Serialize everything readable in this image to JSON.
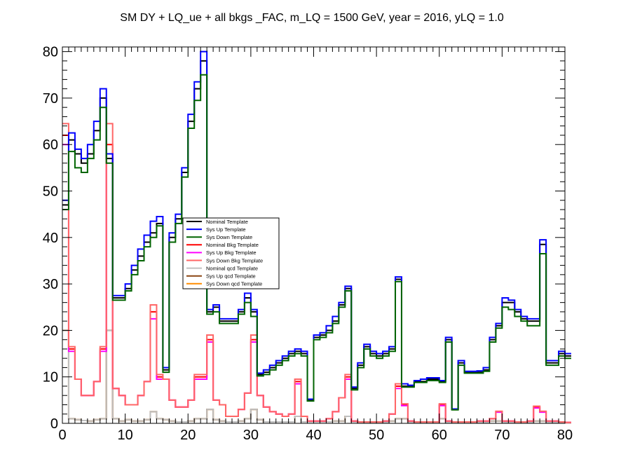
{
  "chart_data": {
    "type": "line",
    "title": "SM DY + LQ_ue + all bkgs _FAC, m_LQ = 1500 GeV, year = 2016, yLQ = 1.0",
    "xlabel": "",
    "ylabel": "",
    "xlim": [
      0,
      80
    ],
    "ylim": [
      0,
      81
    ],
    "x_ticks": [
      0,
      10,
      20,
      30,
      40,
      50,
      60,
      70,
      80
    ],
    "y_ticks": [
      0,
      10,
      20,
      30,
      40,
      50,
      60,
      70,
      80
    ],
    "bin_width": 1,
    "grid": false,
    "legend_placement": "center-left",
    "series": [
      {
        "name": "Nominal Template",
        "color": "#000000",
        "values": [
          47,
          61,
          58,
          56,
          58,
          63,
          70,
          57,
          27,
          27,
          29,
          33,
          36,
          39,
          41,
          43,
          11.5,
          40,
          44,
          54,
          65,
          72,
          78,
          24,
          25,
          22,
          22,
          22,
          24,
          27,
          24,
          10.5,
          11,
          12,
          13,
          14,
          15,
          15.5,
          15,
          5,
          18.5,
          19,
          20,
          22,
          25.5,
          29,
          7.5,
          12.5,
          16.5,
          15,
          14.5,
          15,
          16,
          31,
          8,
          8,
          9,
          9,
          9.5,
          9.5,
          9,
          18,
          3,
          13,
          11,
          11,
          11,
          11.5,
          18,
          21,
          26,
          26,
          24,
          22.5,
          22,
          22,
          38.5,
          13,
          13,
          15,
          14.5
        ]
      },
      {
        "name": "Sys Up Template",
        "color": "#0000ff",
        "values": [
          48,
          62.5,
          59,
          57,
          60,
          65,
          72,
          58,
          27.5,
          27.5,
          30,
          34,
          37.5,
          40.5,
          43.5,
          44.5,
          12,
          41,
          45,
          55,
          66.5,
          73.5,
          80,
          24.5,
          25.5,
          22.5,
          22.5,
          22.5,
          24.5,
          28,
          24.5,
          10.8,
          11.5,
          12.5,
          13.5,
          14.5,
          15.5,
          16,
          15.5,
          5.2,
          19,
          19.5,
          21,
          23,
          26,
          29.5,
          7.8,
          13,
          17,
          15.5,
          15,
          15.5,
          16.5,
          31.5,
          8.5,
          8.2,
          9.2,
          9.5,
          9.8,
          9.8,
          9.2,
          18.5,
          3.1,
          13.5,
          11.2,
          11.2,
          11.3,
          12,
          18.5,
          21.5,
          27,
          26.5,
          24.5,
          23,
          22.5,
          22.5,
          39.5,
          13.5,
          13.5,
          15.5,
          15
        ]
      },
      {
        "name": "Sys Down Template",
        "color": "#006400",
        "values": [
          46,
          58.5,
          55,
          54,
          57,
          61,
          68,
          56,
          26.5,
          26.5,
          28.5,
          32,
          35,
          38,
          40,
          42.5,
          11,
          39,
          43,
          53,
          63.5,
          69.5,
          75,
          23.5,
          24,
          21.5,
          21.5,
          21.5,
          23.5,
          26,
          23,
          10.2,
          10.5,
          11.5,
          12.5,
          13.5,
          14.5,
          15,
          14.5,
          4.8,
          18,
          18.5,
          19.5,
          21.5,
          25,
          28.5,
          7.2,
          12,
          16,
          14.5,
          14,
          14.5,
          15.5,
          30.5,
          7.8,
          7.8,
          8.8,
          8.8,
          9.2,
          9.2,
          8.8,
          17.5,
          2.9,
          12.5,
          10.8,
          10.8,
          10.8,
          11.2,
          17.5,
          20.5,
          25,
          24.5,
          23,
          22,
          21,
          21,
          36.5,
          12.5,
          12.5,
          14.5,
          14
        ]
      },
      {
        "name": "Nominal Bkg Template",
        "color": "#ff0000",
        "values": [
          62,
          16,
          9.5,
          6,
          6,
          9,
          16,
          60,
          7.5,
          6,
          4,
          4,
          6,
          9,
          24,
          10,
          9.5,
          5,
          3.5,
          3.5,
          5,
          10,
          10,
          18,
          5,
          4,
          1.5,
          1.5,
          3,
          6.5,
          18,
          6,
          3.5,
          2.5,
          2,
          1.5,
          2,
          9,
          1.5,
          0.5,
          0.5,
          0.5,
          1,
          2.5,
          5.5,
          10,
          0.5,
          0.3,
          0.3,
          0.3,
          0.3,
          0.5,
          2,
          8,
          4,
          0.5,
          0.3,
          0.3,
          0.3,
          0.3,
          4,
          0.5,
          0.3,
          0.3,
          0.3,
          0.3,
          0.5,
          0.5,
          1,
          2.5,
          0.5,
          0.5,
          0.3,
          0.3,
          0.5,
          3.5,
          2.5,
          0.5,
          0.5,
          0.3,
          0.2
        ]
      },
      {
        "name": "Sys Up Bkg Template",
        "color": "#ff00ff",
        "values": [
          60,
          15.5,
          9.5,
          6,
          6,
          9,
          15.5,
          58,
          7.5,
          6,
          4,
          4,
          6,
          9,
          22.5,
          9.5,
          9.5,
          5,
          3.5,
          3.5,
          5,
          9.5,
          9.5,
          17.5,
          5,
          4,
          1.5,
          1.5,
          3,
          6.5,
          17.5,
          6,
          3.5,
          2.5,
          2,
          1.5,
          2,
          8.5,
          1.5,
          0.5,
          0.5,
          0.5,
          1,
          2.5,
          5.5,
          9.5,
          0.5,
          0.3,
          0.3,
          0.3,
          0.3,
          0.5,
          2,
          7.5,
          3.8,
          0.5,
          0.3,
          0.3,
          0.3,
          0.3,
          3.8,
          0.5,
          0.3,
          0.3,
          0.3,
          0.3,
          0.5,
          0.5,
          1,
          2.4,
          0.5,
          0.5,
          0.3,
          0.3,
          0.5,
          3.3,
          2.4,
          0.5,
          0.5,
          0.3,
          0.2
        ]
      },
      {
        "name": "Sys Down Bkg Template",
        "color": "#ff6666",
        "values": [
          64.5,
          16.5,
          9.5,
          6,
          6,
          9,
          16.5,
          64.5,
          7.5,
          6,
          4,
          4,
          6,
          9,
          25.5,
          10.5,
          9.5,
          5,
          3.5,
          3.5,
          5,
          10.5,
          10.5,
          19,
          5,
          4,
          1.5,
          1.5,
          3,
          6.5,
          19,
          6,
          3.5,
          2.5,
          2,
          1.5,
          2,
          9.5,
          1.5,
          0.5,
          0.5,
          0.5,
          1,
          2.5,
          5.5,
          10.5,
          0.5,
          0.3,
          0.3,
          0.3,
          0.3,
          0.5,
          2,
          8.5,
          4.2,
          0.5,
          0.3,
          0.3,
          0.3,
          0.3,
          4.2,
          0.5,
          0.3,
          0.3,
          0.3,
          0.3,
          0.5,
          0.5,
          1,
          2.6,
          0.5,
          0.5,
          0.3,
          0.3,
          0.5,
          3.7,
          2.6,
          0.5,
          0.5,
          0.3,
          0.2
        ]
      },
      {
        "name": "Nominal qcd Template",
        "color": "#c0c0c0",
        "values": [
          20,
          1,
          0.8,
          0.6,
          0.5,
          0.8,
          1,
          20,
          1,
          0.5,
          0.8,
          0.5,
          0.5,
          0.8,
          2.5,
          1,
          0.8,
          0.5,
          0.3,
          0.3,
          0.5,
          1,
          1,
          3,
          0.8,
          0.5,
          0.3,
          0.3,
          0.5,
          1,
          3,
          0.8,
          0.3,
          0.3,
          0.3,
          0.3,
          0.3,
          1.5,
          0.3,
          0.3,
          0.3,
          0.3,
          0.3,
          0.5,
          0.5,
          1.5,
          0.3,
          0.2,
          0.2,
          0.2,
          0.2,
          0.2,
          0.5,
          1,
          1,
          0.2,
          0.2,
          0.2,
          0.2,
          0.2,
          1,
          0.2,
          0.2,
          0.2,
          0.2,
          0.2,
          0.2,
          0.2,
          0.5,
          0.5,
          0.2,
          0.2,
          0.2,
          0.2,
          0.2,
          0.5,
          0.5,
          0.2,
          0.2,
          0.2,
          0.1
        ]
      },
      {
        "name": "Sys Up qcd Template",
        "color": "#8b4513",
        "values": [
          20,
          1,
          0.8,
          0.6,
          0.5,
          0.8,
          1,
          20,
          1,
          0.5,
          0.8,
          0.5,
          0.5,
          0.8,
          2.5,
          1,
          0.8,
          0.5,
          0.3,
          0.3,
          0.5,
          1,
          1,
          3,
          0.8,
          0.5,
          0.3,
          0.3,
          0.5,
          1,
          3,
          0.8,
          0.3,
          0.3,
          0.3,
          0.3,
          0.3,
          1.5,
          0.3,
          0.3,
          0.3,
          0.3,
          0.3,
          0.5,
          0.5,
          1.5,
          0.3,
          0.2,
          0.2,
          0.2,
          0.2,
          0.2,
          0.5,
          1,
          1,
          0.2,
          0.2,
          0.2,
          0.2,
          0.2,
          1,
          0.2,
          0.2,
          0.2,
          0.2,
          0.2,
          0.2,
          0.2,
          0.5,
          0.5,
          0.2,
          0.2,
          0.2,
          0.2,
          0.2,
          0.5,
          0.5,
          0.2,
          0.2,
          0.2,
          0.1
        ]
      },
      {
        "name": "Sys Down qcd Template",
        "color": "#ff8c00",
        "values": [
          20,
          1,
          0.8,
          0.6,
          0.5,
          0.8,
          1,
          20,
          1,
          0.5,
          0.8,
          0.5,
          0.5,
          0.8,
          2.5,
          1,
          0.8,
          0.5,
          0.3,
          0.3,
          0.5,
          1,
          1,
          3,
          0.8,
          0.5,
          0.3,
          0.3,
          0.5,
          1,
          3,
          0.8,
          0.3,
          0.3,
          0.3,
          0.3,
          0.3,
          1.5,
          0.3,
          0.3,
          0.3,
          0.3,
          0.3,
          0.5,
          0.5,
          1.5,
          0.3,
          0.2,
          0.2,
          0.2,
          0.2,
          0.2,
          0.5,
          1,
          1,
          0.2,
          0.2,
          0.2,
          0.2,
          0.2,
          1,
          0.2,
          0.2,
          0.2,
          0.2,
          0.2,
          0.2,
          0.2,
          0.5,
          0.5,
          0.2,
          0.2,
          0.2,
          0.2,
          0.2,
          0.5,
          0.5,
          0.2,
          0.2,
          0.2,
          0.1
        ]
      }
    ]
  }
}
